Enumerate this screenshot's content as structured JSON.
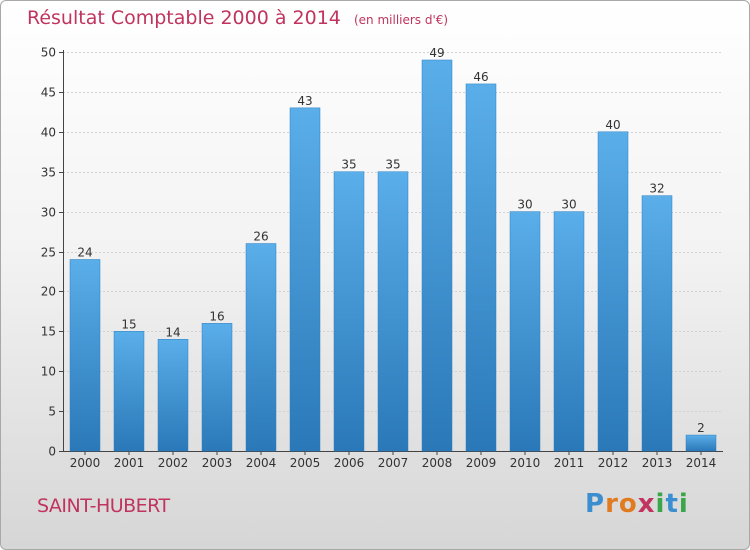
{
  "header": {
    "title": "Résultat Comptable 2000 à 2014",
    "subtitle": "(en milliers d'€)"
  },
  "footer": {
    "commune": "SAINT-HUBERT",
    "logo": [
      "P",
      "r",
      "o",
      "x",
      "i",
      "t",
      "i"
    ],
    "logo_colors": [
      "#3b8fd0",
      "#e07b22",
      "#e07b22",
      "#c0345f",
      "#3aa64a",
      "#3b8fd0",
      "#3aa64a"
    ]
  },
  "chart_data": {
    "type": "bar",
    "title": "Résultat Comptable 2000 à 2014",
    "subtitle": "(en milliers d'€)",
    "categories": [
      "2000",
      "2001",
      "2002",
      "2003",
      "2004",
      "2005",
      "2006",
      "2007",
      "2008",
      "2009",
      "2010",
      "2011",
      "2012",
      "2013",
      "2014"
    ],
    "values": [
      24,
      15,
      14,
      16,
      26,
      43,
      35,
      35,
      49,
      46,
      30,
      30,
      40,
      32,
      2
    ],
    "ylim": [
      0,
      50
    ],
    "yticks": [
      0,
      5,
      10,
      15,
      20,
      25,
      30,
      35,
      40,
      45,
      50
    ],
    "xlabel": "",
    "ylabel": "",
    "grid": true,
    "bar_color_top": "#5aaee9",
    "bar_color_bottom": "#2a78b8"
  }
}
